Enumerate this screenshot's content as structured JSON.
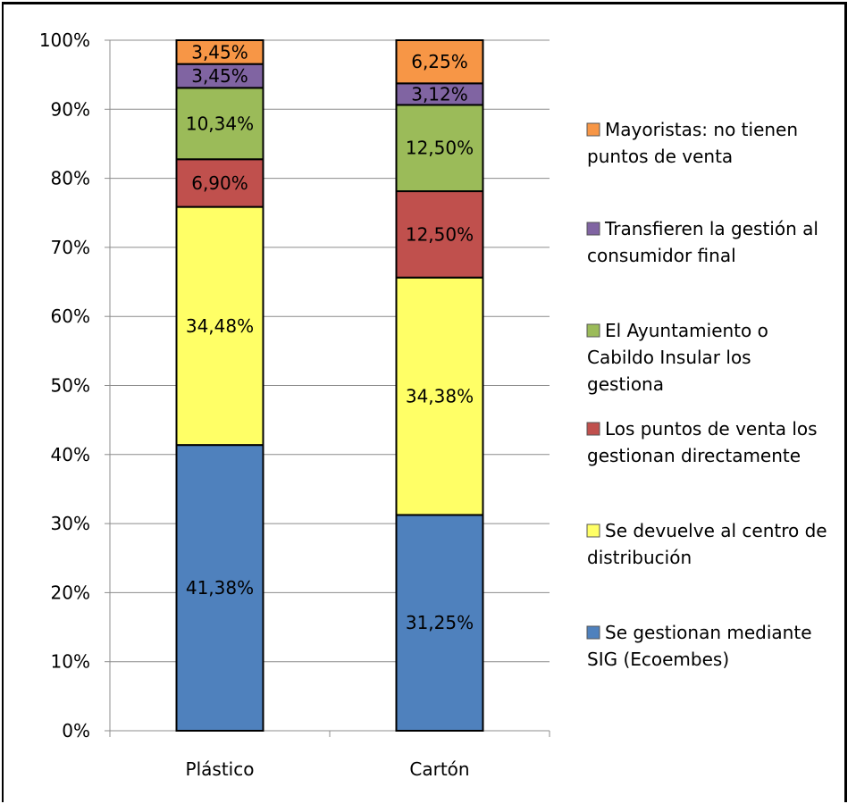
{
  "chart_data": {
    "type": "bar",
    "stacked": "percent",
    "categories": [
      "Plástico",
      "Cartón"
    ],
    "ylim": [
      0,
      100
    ],
    "y_ticks": [
      "0%",
      "10%",
      "20%",
      "30%",
      "40%",
      "50%",
      "60%",
      "70%",
      "80%",
      "90%",
      "100%"
    ],
    "grid": true,
    "legend_position": "right",
    "series": [
      {
        "name": "Se gestionan mediante SIG (Ecoembes)",
        "legend_lines": [
          "Se gestionan mediante",
          "SIG (Ecoembes)"
        ],
        "color": "#4f81bd",
        "values": [
          41.38,
          31.25
        ],
        "labels": [
          "41,38%",
          "31,25%"
        ]
      },
      {
        "name": "Se devuelve al centro de distribución",
        "legend_lines": [
          "Se devuelve al centro de",
          "distribución"
        ],
        "color": "#ffff66",
        "values": [
          34.48,
          34.38
        ],
        "labels": [
          "34,48%",
          "34,38%"
        ]
      },
      {
        "name": "Los puntos de venta los gestionan directamente",
        "legend_lines": [
          "Los puntos de venta los",
          "gestionan directamente"
        ],
        "color": "#c0504d",
        "values": [
          6.9,
          12.5
        ],
        "labels": [
          "6,90%",
          "12,50%"
        ]
      },
      {
        "name": "El Ayuntamiento o Cabildo Insular los gestiona",
        "legend_lines": [
          "El Ayuntamiento o",
          "Cabildo Insular los",
          "gestiona"
        ],
        "color": "#9bbb59",
        "values": [
          10.34,
          12.5
        ],
        "labels": [
          "10,34%",
          "12,50%"
        ]
      },
      {
        "name": "Transfieren la gestión al consumidor final",
        "legend_lines": [
          "Transfieren la gestión al",
          "consumidor final"
        ],
        "color": "#8064a2",
        "values": [
          3.45,
          3.12
        ],
        "labels": [
          "3,45%",
          "3,12%"
        ]
      },
      {
        "name": "Mayoristas: no tienen puntos de venta",
        "legend_lines": [
          "Mayoristas: no tienen",
          "puntos de venta"
        ],
        "color": "#f79646",
        "values": [
          3.45,
          6.25
        ],
        "labels": [
          "3,45%",
          "6,25%"
        ]
      }
    ]
  }
}
